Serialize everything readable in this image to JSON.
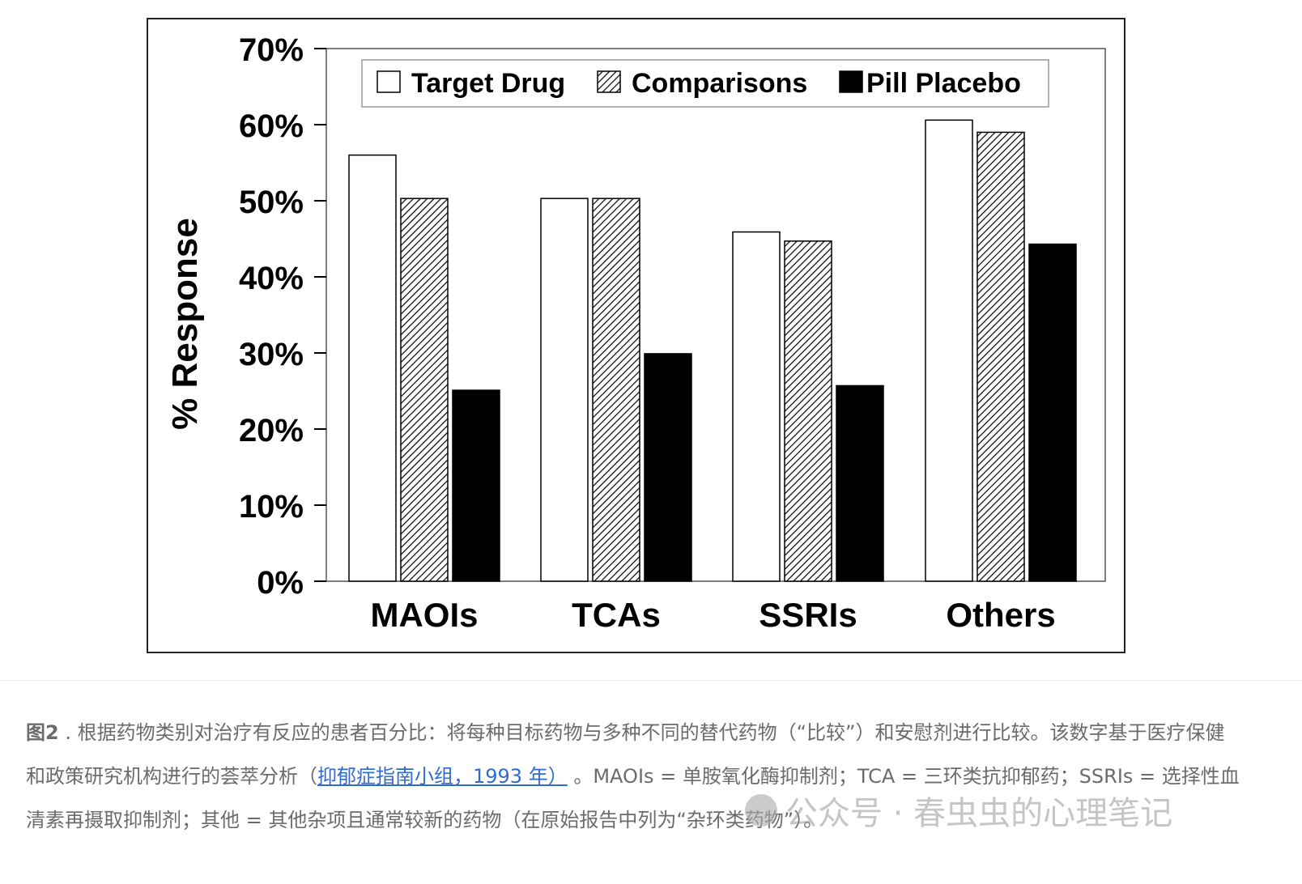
{
  "chart_data": {
    "type": "bar",
    "title": "",
    "xlabel": "",
    "ylabel": "% Response",
    "ylim": [
      0,
      70
    ],
    "yticks": [
      "0%",
      "10%",
      "20%",
      "30%",
      "40%",
      "50%",
      "60%",
      "70%"
    ],
    "categories": [
      "MAOIs",
      "TCAs",
      "SSRIs",
      "Others"
    ],
    "legend_position": "top",
    "series": [
      {
        "name": "Target Drug",
        "style": "white",
        "values": [
          56,
          50.3,
          45.9,
          60.6
        ]
      },
      {
        "name": "Comparisons",
        "style": "hatched",
        "values": [
          50.3,
          50.3,
          44.7,
          59
        ]
      },
      {
        "name": "Pill Placebo",
        "style": "black",
        "values": [
          25.1,
          29.9,
          25.7,
          44.3
        ]
      }
    ]
  },
  "caption": {
    "label": "图2",
    "text1": " . 根据药物类别对治疗有反应的患者百分比：将每种目标药物与多种不同的替代药物（“比较”）和安慰剂进行比较。该数字基于医疗保健和政策研究机构进行的荟萃分析（",
    "link": "抑郁症指南小组，1993 年）",
    "text2": " 。MAOIs = 单胺氧化酶抑制剂；TCA = 三环类抗抑郁药；SSRIs = 选择性血清素再摄取抑制剂；其他 = 其他杂项且通常较新的药物（在原始报告中列为“杂环类药物”）。"
  },
  "watermark": "公众号 · 春虫虫的心理笔记"
}
